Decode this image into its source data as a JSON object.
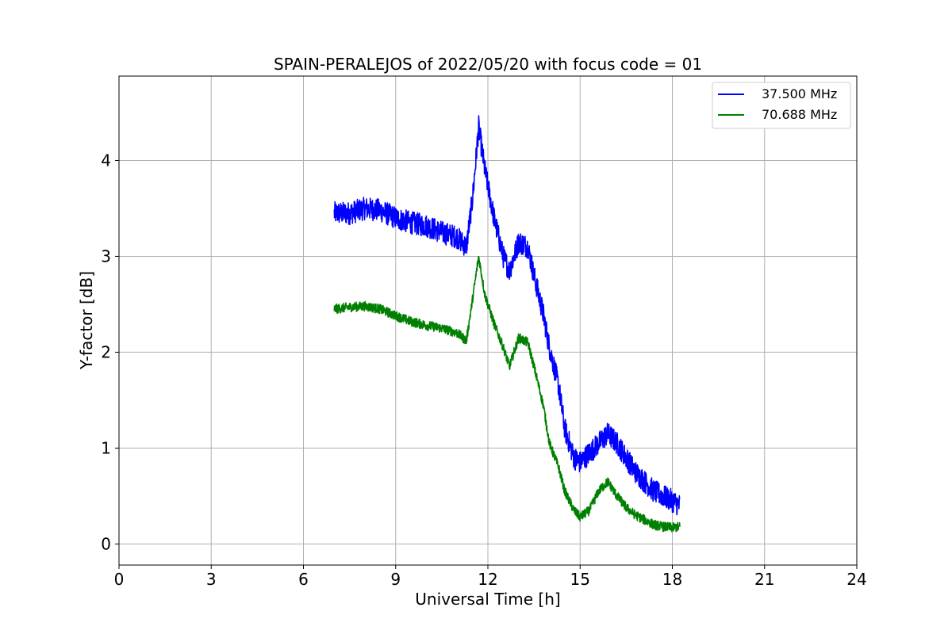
{
  "chart_data": {
    "type": "line",
    "title": "SPAIN-PERALEJOS of 2022/05/20 with focus code = 01",
    "xlabel": "Universal Time [h]",
    "ylabel": "Y-factor [dB]",
    "xlim": [
      0,
      24
    ],
    "ylim": [
      -0.22,
      4.88
    ],
    "xticks": [
      0,
      3,
      6,
      9,
      12,
      15,
      18,
      21,
      24
    ],
    "yticks": [
      0,
      1,
      2,
      3,
      4
    ],
    "grid": true,
    "legend_position": "top-right",
    "series": [
      {
        "name": "37.500 MHz",
        "color": "#0000ff",
        "x": [
          7.0,
          7.5,
          8.0,
          8.5,
          9.0,
          9.5,
          10.0,
          10.5,
          11.0,
          11.3,
          11.5,
          11.7,
          11.9,
          12.2,
          12.5,
          12.7,
          13.0,
          13.3,
          13.5,
          13.8,
          14.0,
          14.3,
          14.5,
          14.8,
          15.0,
          15.3,
          15.6,
          15.9,
          16.2,
          16.5,
          16.8,
          17.1,
          17.4,
          17.7,
          18.0,
          18.25
        ],
        "y": [
          3.45,
          3.45,
          3.5,
          3.48,
          3.4,
          3.35,
          3.32,
          3.25,
          3.2,
          3.1,
          3.6,
          4.35,
          3.9,
          3.4,
          3.0,
          2.85,
          3.15,
          3.1,
          2.8,
          2.4,
          2.05,
          1.65,
          1.2,
          0.9,
          0.85,
          0.95,
          1.05,
          1.15,
          1.05,
          0.9,
          0.75,
          0.65,
          0.55,
          0.5,
          0.45,
          0.4
        ],
        "noise": 0.12
      },
      {
        "name": "70.688 MHz",
        "color": "#008000",
        "x": [
          7.0,
          7.5,
          8.0,
          8.5,
          9.0,
          9.5,
          10.0,
          10.5,
          11.0,
          11.3,
          11.5,
          11.7,
          11.9,
          12.2,
          12.5,
          12.7,
          13.0,
          13.3,
          13.5,
          13.8,
          14.0,
          14.3,
          14.5,
          14.8,
          15.0,
          15.3,
          15.6,
          15.9,
          16.2,
          16.5,
          16.8,
          17.1,
          17.4,
          17.7,
          18.0,
          18.25
        ],
        "y": [
          2.45,
          2.47,
          2.48,
          2.45,
          2.38,
          2.32,
          2.28,
          2.25,
          2.2,
          2.12,
          2.55,
          3.0,
          2.6,
          2.3,
          2.05,
          1.85,
          2.15,
          2.1,
          1.85,
          1.45,
          1.05,
          0.8,
          0.55,
          0.35,
          0.28,
          0.35,
          0.55,
          0.65,
          0.5,
          0.38,
          0.3,
          0.25,
          0.2,
          0.18,
          0.17,
          0.18
        ],
        "noise": 0.05
      }
    ]
  }
}
